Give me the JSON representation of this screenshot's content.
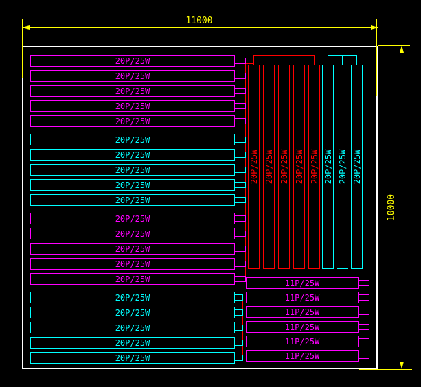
{
  "title": "heating-plan-cad-drawing",
  "colors": {
    "background": "#000000",
    "magenta": "#FF00FF",
    "cyan": "#00FFFF",
    "red": "#FF0000",
    "yellow": "#FFFF00",
    "white": "#FFFFFF"
  },
  "dimensions": {
    "top_width": "11000",
    "right_height": "10000"
  },
  "left_bar_groups": [
    {
      "color": "magenta",
      "bars": [
        "20P/25W",
        "20P/25W",
        "20P/25W",
        "20P/25W",
        "20P/25W"
      ]
    },
    {
      "color": "cyan",
      "bars": [
        "20P/25W",
        "20P/25W",
        "20P/25W",
        "20P/25W",
        "20P/25W"
      ]
    },
    {
      "color": "magenta",
      "bars": [
        "20P/25W",
        "20P/25W",
        "20P/25W",
        "20P/25W",
        "20P/25W"
      ]
    },
    {
      "color": "cyan",
      "bars": [
        "20P/25W",
        "20P/25W",
        "20P/25W",
        "20P/25W",
        "20P/25W"
      ]
    }
  ],
  "vertical_bar_groups": [
    {
      "color": "red",
      "bars": [
        "20P/25W",
        "20P/25W",
        "20P/25W",
        "20P/25W",
        "20P/25W"
      ]
    },
    {
      "color": "cyan",
      "bars": [
        "20P/25W",
        "20P/25W",
        "20P/25W"
      ]
    }
  ],
  "bottom_right_bars": {
    "color": "magenta",
    "bars": [
      "11P/25W",
      "11P/25W",
      "11P/25W",
      "11P/25W",
      "11P/25W",
      "11P/25W"
    ]
  }
}
